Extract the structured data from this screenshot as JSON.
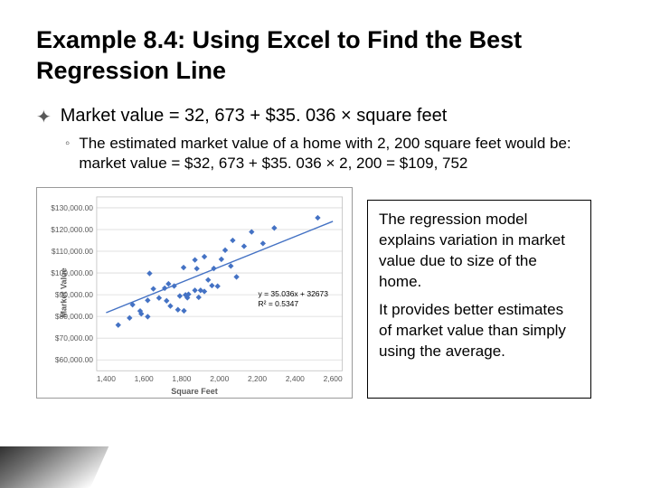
{
  "title": "Example 8.4: Using Excel to Find the Best Regression Line",
  "bullet": "Market value = 32, 673 + $35. 036 × square feet",
  "subbullet": "The estimated market value of a home with 2, 200 square feet would be: market value = $32, 673 + $35. 036 × 2, 200 = $109, 752",
  "callout_p1": "The regression model explains variation in market value  due to size of the home.",
  "callout_p2": "It provides better estimates of market value than simply using the average.",
  "chart": {
    "type": "scatter",
    "x_label": "Square Feet",
    "y_label": "Market Value",
    "x_ticks": [
      1400,
      1600,
      1800,
      2000,
      2200,
      2400,
      2600
    ],
    "x_tick_labels": [
      "1,400",
      "1,600",
      "1,800",
      "2,000",
      "2,200",
      "2,400",
      "2,600"
    ],
    "y_ticks": [
      60000,
      70000,
      80000,
      90000,
      100000,
      110000,
      120000,
      130000
    ],
    "y_tick_labels": [
      "$60,000.00",
      "$70,000.00",
      "$80,000.00",
      "$90,000.00",
      "$100,000.00",
      "$110,000.00",
      "$120,000.00",
      "$130,000.00"
    ],
    "xlim": [
      1350,
      2650
    ],
    "ylim": [
      55000,
      135000
    ],
    "marker_color": "#4472c4",
    "marker_size": 3.2,
    "line_color": "#4472c4",
    "line_width": 1.4,
    "grid_color": "#d9d9d9",
    "background_color": "#ffffff",
    "tick_color": "#595959",
    "tick_fontsize": 8.5,
    "axis_label_fontsize": 9,
    "equation_line1": "y = 35.036x + 32673",
    "equation_line2": "R² = 0.5347",
    "regression": {
      "slope": 35.036,
      "intercept": 32673
    },
    "points": [
      [
        1464,
        76050
      ],
      [
        1524,
        79300
      ],
      [
        1540,
        85400
      ],
      [
        1580,
        82500
      ],
      [
        1586,
        81200
      ],
      [
        1620,
        87400
      ],
      [
        1620,
        79900
      ],
      [
        1630,
        99800
      ],
      [
        1650,
        92700
      ],
      [
        1680,
        88500
      ],
      [
        1710,
        93000
      ],
      [
        1720,
        87200
      ],
      [
        1730,
        95000
      ],
      [
        1740,
        84800
      ],
      [
        1760,
        94000
      ],
      [
        1780,
        83100
      ],
      [
        1790,
        89400
      ],
      [
        1810,
        102500
      ],
      [
        1812,
        82600
      ],
      [
        1820,
        89900
      ],
      [
        1830,
        88600
      ],
      [
        1836,
        90200
      ],
      [
        1870,
        106000
      ],
      [
        1870,
        92000
      ],
      [
        1880,
        102000
      ],
      [
        1890,
        88800
      ],
      [
        1900,
        92000
      ],
      [
        1920,
        91500
      ],
      [
        1920,
        107500
      ],
      [
        1940,
        96800
      ],
      [
        1960,
        94200
      ],
      [
        1970,
        102100
      ],
      [
        1990,
        93900
      ],
      [
        2010,
        106300
      ],
      [
        2030,
        110500
      ],
      [
        2060,
        103200
      ],
      [
        2070,
        115000
      ],
      [
        2090,
        98200
      ],
      [
        2130,
        112300
      ],
      [
        2170,
        118900
      ],
      [
        2230,
        113600
      ],
      [
        2290,
        120700
      ],
      [
        2520,
        125400
      ]
    ]
  }
}
